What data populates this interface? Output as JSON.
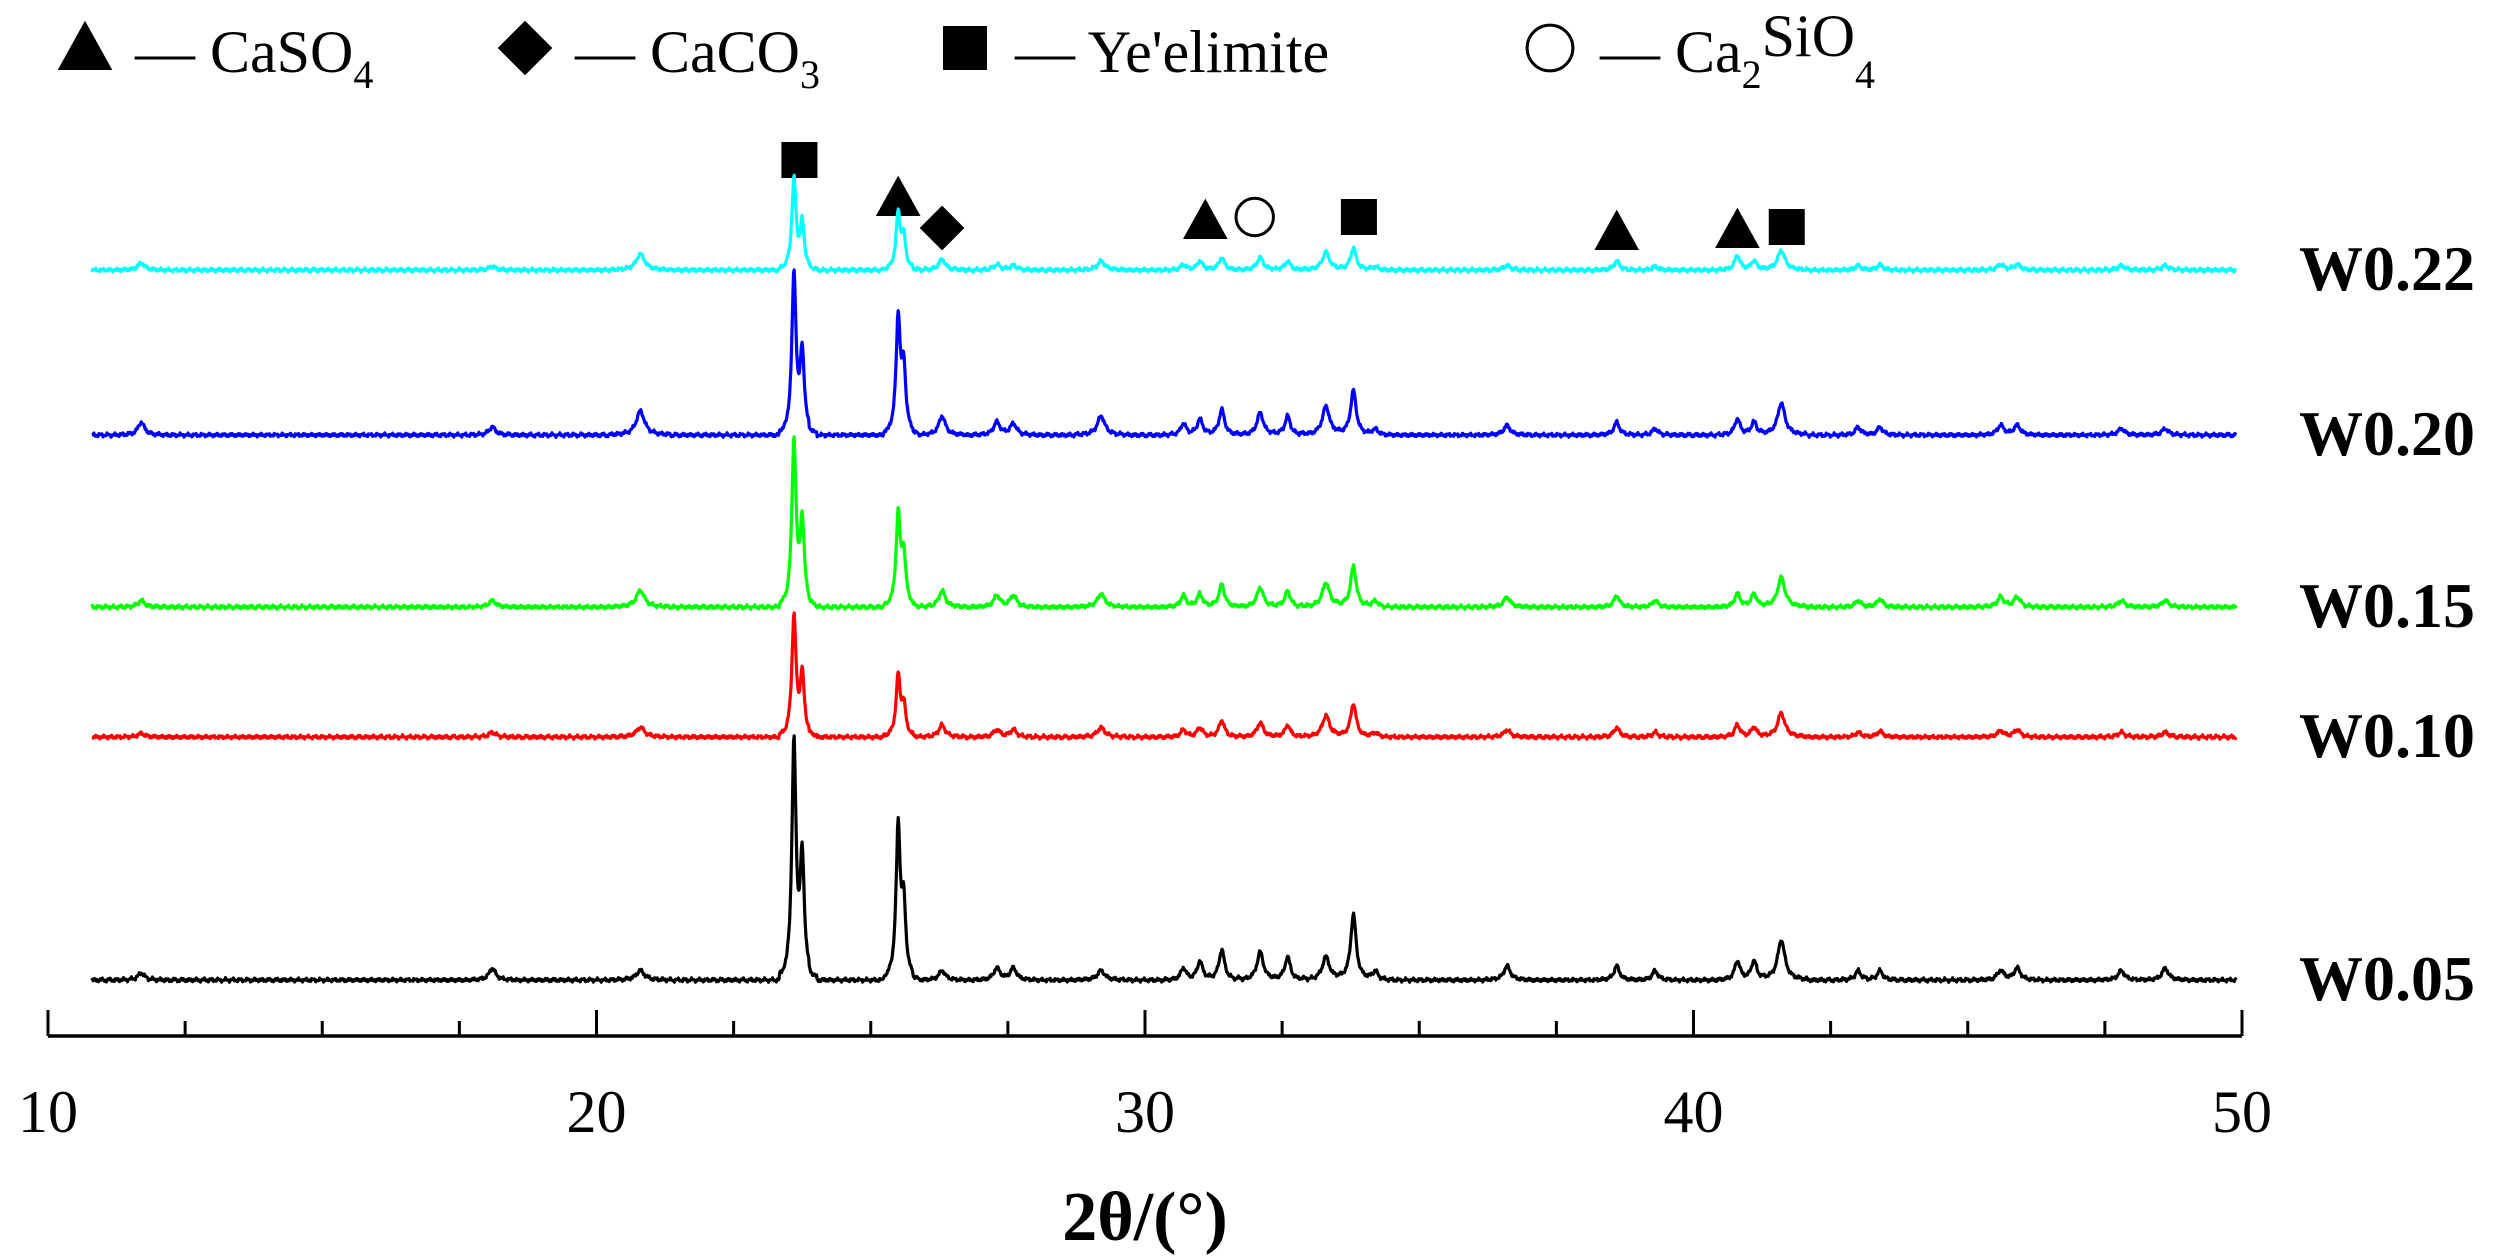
{
  "legend": {
    "items": [
      {
        "symbol": "triangle",
        "dash": "—",
        "main": "CaSO",
        "sub": "4",
        "tail": ""
      },
      {
        "symbol": "diamond",
        "dash": "—",
        "main": "CaCO",
        "sub": "3",
        "tail": ""
      },
      {
        "symbol": "square",
        "dash": "—",
        "main": "Ye'elimite",
        "sub": "",
        "tail": ""
      },
      {
        "symbol": "circle",
        "dash": "—",
        "main": "Ca",
        "sub": "2",
        "tail": "SiO",
        "sub2": "4"
      }
    ]
  },
  "chart_data": {
    "type": "line",
    "title": "",
    "xlabel": "2θ/(°)",
    "ylabel": "",
    "xlim": [
      10,
      50
    ],
    "x_ticks": [
      10,
      20,
      30,
      40,
      50
    ],
    "grid": false,
    "peaks_2theta": [
      11.7,
      18.1,
      20.8,
      23.6,
      23.75,
      25.5,
      25.6,
      26.3,
      27.3,
      27.6,
      29.2,
      30.7,
      31.0,
      31.4,
      32.1,
      32.6,
      33.3,
      33.8,
      34.2,
      36.6,
      38.6,
      39.3,
      40.8,
      41.1,
      41.6,
      43.0,
      43.4,
      45.6,
      45.9,
      47.8,
      48.6
    ],
    "series": [
      {
        "name": "W0.22",
        "color": "#00ffff",
        "peak_heights": [
          0.08,
          0.04,
          0.18,
          1.0,
          0.5,
          0.62,
          0.35,
          0.12,
          0.06,
          0.05,
          0.1,
          0.06,
          0.1,
          0.14,
          0.14,
          0.1,
          0.2,
          0.25,
          0.04,
          0.05,
          0.1,
          0.04,
          0.16,
          0.1,
          0.22,
          0.05,
          0.06,
          0.06,
          0.06,
          0.05,
          0.05
        ]
      },
      {
        "name": "W0.20",
        "color": "#0000ff",
        "peak_heights": [
          0.08,
          0.05,
          0.15,
          1.0,
          0.5,
          0.72,
          0.4,
          0.12,
          0.08,
          0.07,
          0.12,
          0.07,
          0.1,
          0.16,
          0.14,
          0.12,
          0.18,
          0.28,
          0.04,
          0.06,
          0.08,
          0.04,
          0.1,
          0.08,
          0.2,
          0.05,
          0.05,
          0.06,
          0.06,
          0.04,
          0.04
        ]
      },
      {
        "name": "W0.15",
        "color": "#00ff00",
        "peak_heights": [
          0.04,
          0.04,
          0.1,
          1.0,
          0.5,
          0.55,
          0.3,
          0.1,
          0.07,
          0.07,
          0.08,
          0.07,
          0.08,
          0.14,
          0.12,
          0.1,
          0.15,
          0.25,
          0.04,
          0.06,
          0.07,
          0.04,
          0.08,
          0.08,
          0.18,
          0.04,
          0.05,
          0.06,
          0.06,
          0.04,
          0.04
        ]
      },
      {
        "name": "W0.10",
        "color": "#ff0000",
        "peak_heights": [
          0.03,
          0.04,
          0.08,
          1.0,
          0.5,
          0.5,
          0.25,
          0.1,
          0.06,
          0.06,
          0.08,
          0.06,
          0.08,
          0.14,
          0.12,
          0.1,
          0.18,
          0.28,
          0.04,
          0.06,
          0.08,
          0.04,
          0.1,
          0.08,
          0.2,
          0.04,
          0.05,
          0.05,
          0.06,
          0.04,
          0.04
        ]
      },
      {
        "name": "W0.05",
        "color": "#000000",
        "peak_heights": [
          0.03,
          0.05,
          0.04,
          1.0,
          0.5,
          0.64,
          0.3,
          0.04,
          0.05,
          0.05,
          0.04,
          0.05,
          0.08,
          0.13,
          0.12,
          0.1,
          0.1,
          0.28,
          0.04,
          0.06,
          0.06,
          0.04,
          0.08,
          0.08,
          0.17,
          0.04,
          0.04,
          0.04,
          0.05,
          0.04,
          0.05
        ]
      }
    ],
    "phase_markers": [
      {
        "phase": "Ye'elimite",
        "symbol": "square",
        "x": 23.7
      },
      {
        "phase": "CaSO4",
        "symbol": "triangle",
        "x": 25.5
      },
      {
        "phase": "CaCO3",
        "symbol": "diamond",
        "x": 26.3
      },
      {
        "phase": "CaSO4",
        "symbol": "triangle",
        "x": 31.1
      },
      {
        "phase": "Ca2SiO4",
        "symbol": "circle",
        "x": 32.0
      },
      {
        "phase": "Ye'elimite",
        "symbol": "square",
        "x": 33.9
      },
      {
        "phase": "CaSO4",
        "symbol": "triangle",
        "x": 38.6
      },
      {
        "phase": "CaSO4",
        "symbol": "triangle",
        "x": 40.8
      },
      {
        "phase": "Ye'elimite",
        "symbol": "square",
        "x": 41.7
      }
    ]
  }
}
